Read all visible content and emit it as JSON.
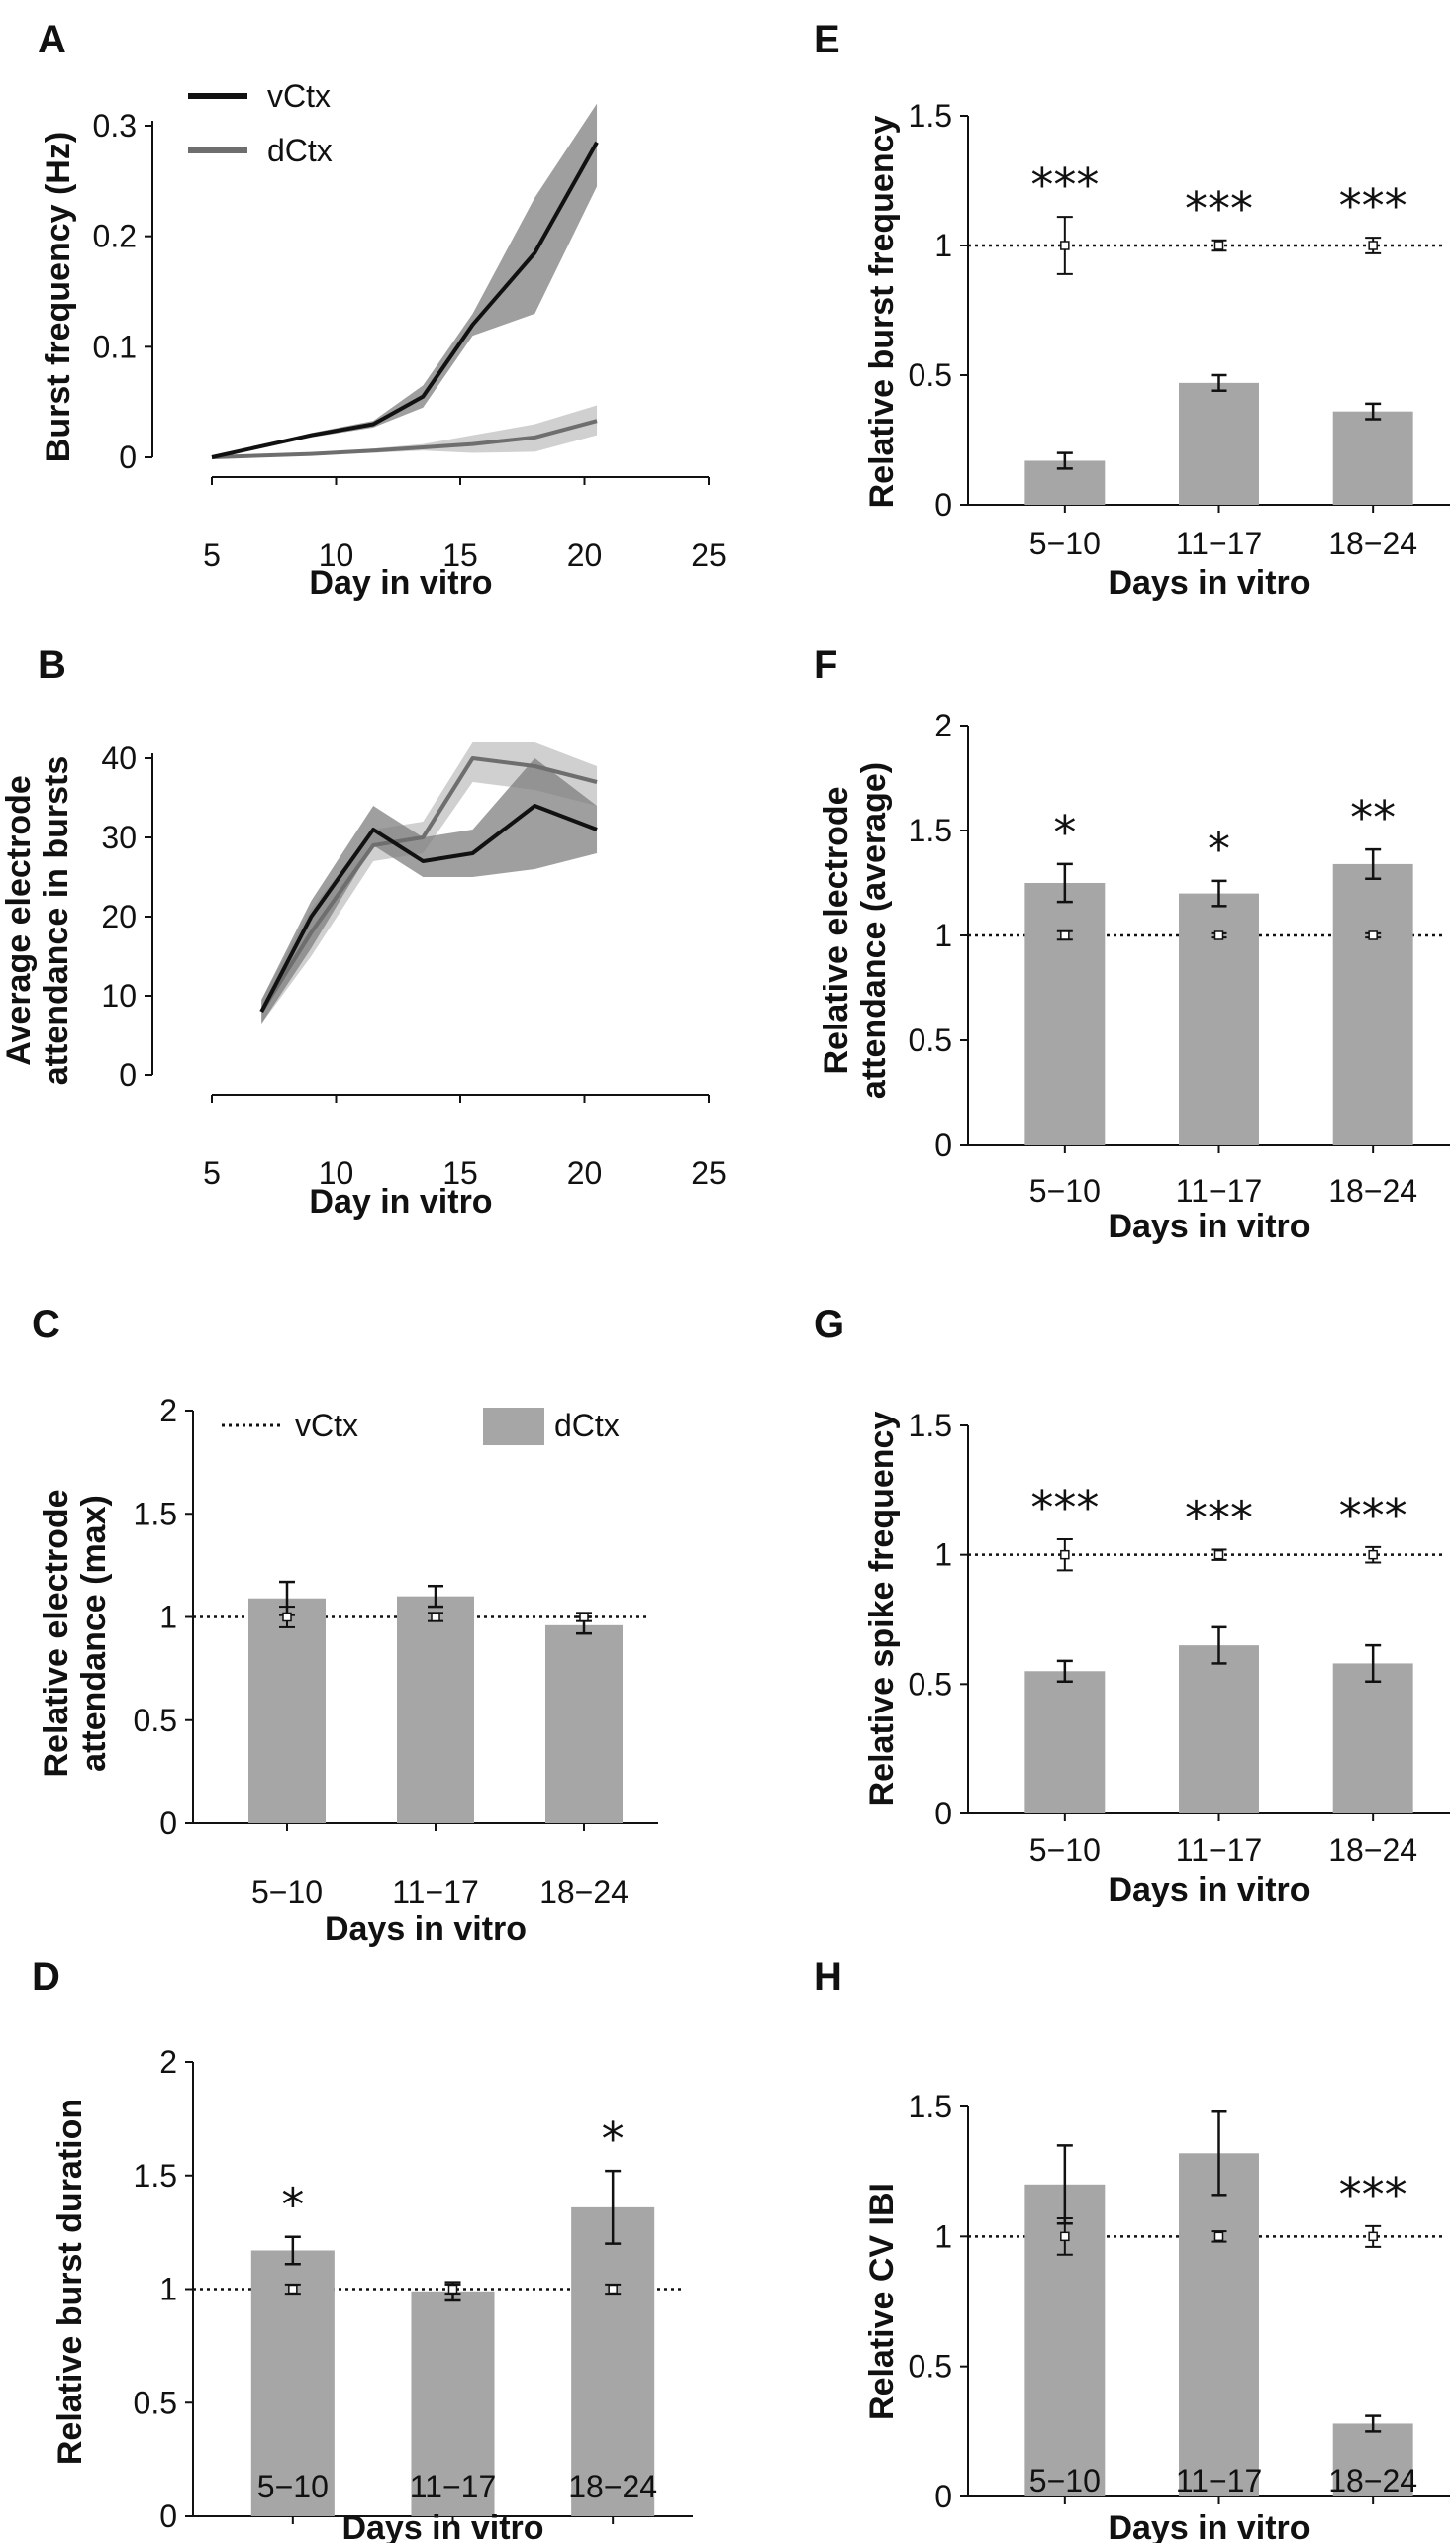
{
  "chart_data": [
    {
      "panel": "A",
      "type": "line",
      "xlabel": "Day in vitro",
      "ylabel": "Burst frequency (Hz)",
      "xlim": [
        5,
        25
      ],
      "xticks": [
        5,
        10,
        15,
        20,
        25
      ],
      "ylim": [
        0,
        0.3
      ],
      "yticks": [
        0,
        0.1,
        0.2,
        0.3
      ],
      "yticklabels": [
        "0",
        "0.1",
        "0.2",
        "0.3"
      ],
      "legend": [
        "vCtx",
        "dCtx"
      ],
      "series": [
        {
          "name": "vCtx",
          "color": "#111111",
          "band_color": "#7f7f7f",
          "x": [
            5,
            9,
            11.5,
            13.5,
            15.5,
            18,
            20.5
          ],
          "y": [
            0,
            0.02,
            0.03,
            0.055,
            0.12,
            0.185,
            0.285
          ],
          "lower": [
            0,
            0.018,
            0.027,
            0.045,
            0.11,
            0.13,
            0.245
          ],
          "upper": [
            0,
            0.022,
            0.033,
            0.065,
            0.13,
            0.235,
            0.32
          ]
        },
        {
          "name": "dCtx",
          "color": "#6e6e6e",
          "band_color": "#c0c0c0",
          "x": [
            5,
            9,
            11.5,
            13.5,
            15.5,
            18,
            20.5
          ],
          "y": [
            0,
            0.003,
            0.006,
            0.009,
            0.012,
            0.018,
            0.033
          ],
          "lower": [
            0,
            0.002,
            0.004,
            0.006,
            0.004,
            0.005,
            0.02
          ],
          "upper": [
            0,
            0.004,
            0.008,
            0.012,
            0.02,
            0.03,
            0.047
          ]
        }
      ]
    },
    {
      "panel": "B",
      "type": "line",
      "xlabel": "Day in vitro",
      "ylabel": "Average electrode attendance in bursts",
      "ylabel_lines": [
        "Average electrode",
        "attendance in bursts"
      ],
      "xlim": [
        5,
        25
      ],
      "xticks": [
        5,
        10,
        15,
        20,
        25
      ],
      "ylim": [
        0,
        40
      ],
      "yticks": [
        0,
        10,
        20,
        30,
        40
      ],
      "yticklabels": [
        "0",
        "10",
        "20",
        "30",
        "40"
      ],
      "series": [
        {
          "name": "vCtx",
          "color": "#111111",
          "band_color": "#7f7f7f",
          "x": [
            7,
            9,
            11.5,
            13.5,
            15.5,
            18,
            20.5
          ],
          "y": [
            8,
            20,
            31,
            27,
            28,
            34,
            31
          ],
          "lower": [
            6.5,
            16,
            29,
            25,
            25,
            26,
            28
          ],
          "upper": [
            9.5,
            22,
            34,
            30,
            31,
            40,
            34
          ]
        },
        {
          "name": "dCtx",
          "color": "#6e6e6e",
          "band_color": "#c0c0c0",
          "x": [
            7,
            9,
            11.5,
            13.5,
            15.5,
            18,
            20.5
          ],
          "y": [
            8,
            18,
            29,
            30,
            40,
            39,
            37
          ],
          "lower": [
            6.5,
            15,
            27,
            28,
            37,
            36,
            34
          ],
          "upper": [
            9.5,
            21,
            31,
            32,
            42,
            42,
            39
          ]
        }
      ]
    },
    {
      "panel": "C",
      "type": "bar",
      "xlabel": "Days in vitro",
      "ylabel": "Relative electrode attendance (max)",
      "ylabel_lines": [
        "Relative electrode",
        "attendance (max)"
      ],
      "categories": [
        "5−10",
        "11−17",
        "18−24"
      ],
      "ylim": [
        0,
        2
      ],
      "yticks": [
        0,
        0.5,
        1,
        1.5,
        2
      ],
      "yticklabels": [
        "0",
        "0.5",
        "1",
        "1.5",
        "2"
      ],
      "legend": [
        "vCtx",
        "dCtx"
      ],
      "dCtx": [
        1.09,
        1.1,
        0.96
      ],
      "dCtx_err": [
        0.08,
        0.05,
        0.04
      ],
      "vCtx": [
        1,
        1,
        1
      ],
      "vCtx_err": [
        0.05,
        0.02,
        0.02
      ],
      "significance": [
        "",
        "",
        ""
      ]
    },
    {
      "panel": "D",
      "type": "bar",
      "xlabel": "Days in vitro",
      "ylabel": "Relative burst duration",
      "categories": [
        "5−10",
        "11−17",
        "18−24"
      ],
      "ylim": [
        0,
        2
      ],
      "yticks": [
        0,
        0.5,
        1,
        1.5,
        2
      ],
      "yticklabels": [
        "0",
        "0.5",
        "1",
        "1.5",
        "2"
      ],
      "dCtx": [
        1.17,
        0.99,
        1.36
      ],
      "dCtx_err": [
        0.06,
        0.04,
        0.16
      ],
      "vCtx": [
        1,
        1,
        1
      ],
      "vCtx_err": [
        0.02,
        0.02,
        0.02
      ],
      "significance": [
        "*",
        "",
        "*"
      ]
    },
    {
      "panel": "E",
      "type": "bar",
      "xlabel": "Days in vitro",
      "ylabel": "Relative burst frequency",
      "categories": [
        "5−10",
        "11−17",
        "18−24"
      ],
      "ylim": [
        0,
        1.5
      ],
      "yticks": [
        0,
        0.5,
        1,
        1.5
      ],
      "yticklabels": [
        "0",
        "0.5",
        "1",
        "1.5"
      ],
      "dCtx": [
        0.17,
        0.47,
        0.36
      ],
      "dCtx_err": [
        0.03,
        0.03,
        0.03
      ],
      "vCtx": [
        1,
        1,
        1
      ],
      "vCtx_err": [
        0.11,
        0.02,
        0.03
      ],
      "significance": [
        "***",
        "***",
        "***"
      ]
    },
    {
      "panel": "F",
      "type": "bar",
      "xlabel": "Days in vitro",
      "ylabel": "Relative electrode attendance (average)",
      "ylabel_lines": [
        "Relative electrode",
        "attendance (average)"
      ],
      "categories": [
        "5−10",
        "11−17",
        "18−24"
      ],
      "ylim": [
        0,
        2
      ],
      "yticks": [
        0,
        0.5,
        1,
        1.5,
        2
      ],
      "yticklabels": [
        "0",
        "0.5",
        "1",
        "1.5",
        "2"
      ],
      "dCtx": [
        1.25,
        1.2,
        1.34
      ],
      "dCtx_err": [
        0.09,
        0.06,
        0.07
      ],
      "vCtx": [
        1,
        1,
        1
      ],
      "vCtx_err": [
        0.02,
        0.01,
        0.01
      ],
      "significance": [
        "*",
        "*",
        "**"
      ]
    },
    {
      "panel": "G",
      "type": "bar",
      "xlabel": "Days in vitro",
      "ylabel": "Relative spike frequency",
      "categories": [
        "5−10",
        "11−17",
        "18−24"
      ],
      "ylim": [
        0,
        1.5
      ],
      "yticks": [
        0,
        0.5,
        1,
        1.5
      ],
      "yticklabels": [
        "0",
        "0.5",
        "1",
        "1.5"
      ],
      "dCtx": [
        0.55,
        0.65,
        0.58
      ],
      "dCtx_err": [
        0.04,
        0.07,
        0.07
      ],
      "vCtx": [
        1,
        1,
        1
      ],
      "vCtx_err": [
        0.06,
        0.02,
        0.03
      ],
      "significance": [
        "***",
        "***",
        "***"
      ]
    },
    {
      "panel": "H",
      "type": "bar",
      "xlabel": "Days in vitro",
      "ylabel": "Relative CV IBI",
      "categories": [
        "5−10",
        "11−17",
        "18−24"
      ],
      "ylim": [
        0,
        1.5
      ],
      "yticks": [
        0,
        0.5,
        1,
        1.5
      ],
      "yticklabels": [
        "0",
        "0.5",
        "1",
        "1.5"
      ],
      "dCtx": [
        1.2,
        1.32,
        0.28
      ],
      "dCtx_err": [
        0.15,
        0.16,
        0.03
      ],
      "vCtx": [
        1,
        1,
        1
      ],
      "vCtx_err": [
        0.07,
        0.02,
        0.04
      ],
      "significance": [
        "",
        "",
        "***"
      ]
    }
  ],
  "colors": {
    "bar": "#a6a6a6",
    "axis": "#111111",
    "reference_line": "#111111"
  }
}
